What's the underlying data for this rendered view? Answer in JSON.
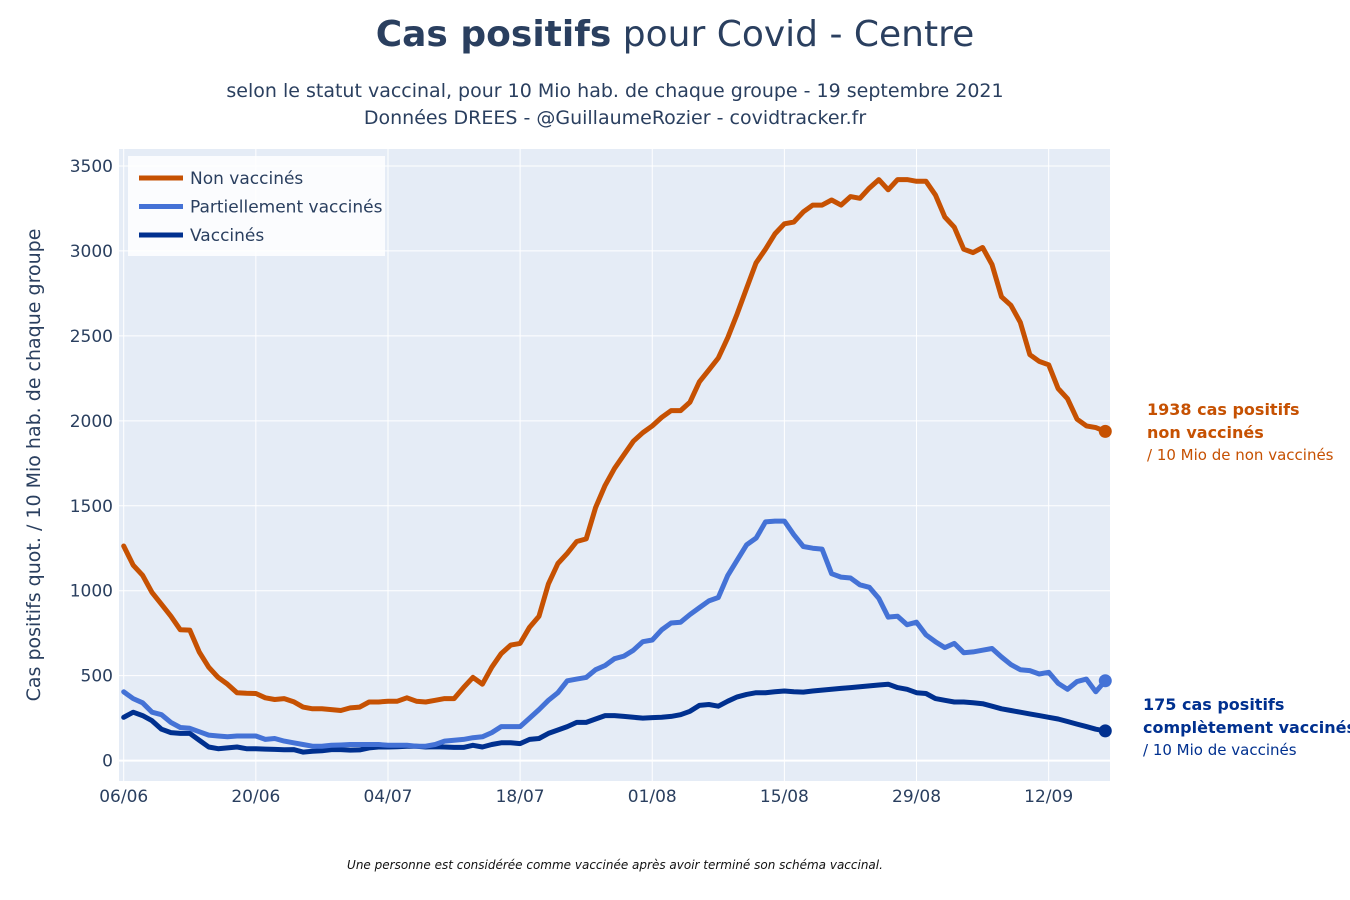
{
  "header": {
    "title_bold": "Cas positifs",
    "title_rest": " pour Covid - Centre",
    "subtitle_line1": "selon le statut vaccinal, pour 10 Mio hab. de chaque groupe - 19 septembre 2021",
    "subtitle_line2": "Données DREES - @GuillaumeRozier - covidtracker.fr"
  },
  "footnote": "Une personne est considérée comme vaccinée après avoir terminé son schéma vaccinal.",
  "annotations": {
    "non_vaccines": {
      "line1": "1938 cas positifs",
      "line2": "non vaccinés",
      "line3": "/ 10 Mio de non vaccinés"
    },
    "vaccines": {
      "line1": "175 cas positifs",
      "line2": "complètement vaccinés",
      "line3": "/ 10 Mio de vaccinés"
    }
  },
  "colors": {
    "plot_bg": "#e5ecf6",
    "grid": "#ffffff",
    "non_vaccines": "#c65102",
    "partiellement": "#4472d6",
    "vaccines": "#00308f",
    "text": "#2a3f5f"
  },
  "chart_data": {
    "type": "line",
    "ylabel": "Cas positifs quot. / 10 Mio hab. de chaque groupe",
    "xlabel": "",
    "ylim": [
      -120,
      3600
    ],
    "yticks": [
      0,
      500,
      1000,
      1500,
      2000,
      2500,
      3000,
      3500
    ],
    "x_start": "2021-06-06",
    "xlim_days": [
      -0.5,
      104.5
    ],
    "xticks": [
      {
        "day": 0,
        "label": "06/06"
      },
      {
        "day": 14,
        "label": "20/06"
      },
      {
        "day": 28,
        "label": "04/07"
      },
      {
        "day": 42,
        "label": "18/07"
      },
      {
        "day": 56,
        "label": "01/08"
      },
      {
        "day": 70,
        "label": "15/08"
      },
      {
        "day": 84,
        "label": "29/08"
      },
      {
        "day": 98,
        "label": "12/09"
      }
    ],
    "grid": true,
    "legend_position": "top-left",
    "series": [
      {
        "name": "Non vaccinés",
        "values": [
          1263,
          1150,
          1091,
          990,
          920,
          850,
          770,
          768,
          640,
          550,
          490,
          450,
          400,
          396,
          395,
          370,
          360,
          365,
          347,
          315,
          305,
          305,
          300,
          295,
          310,
          315,
          345,
          345,
          350,
          350,
          370,
          350,
          345,
          355,
          365,
          365,
          430,
          490,
          450,
          550,
          630,
          680,
          690,
          785,
          850,
          1040,
          1160,
          1220,
          1290,
          1305,
          1490,
          1620,
          1720,
          1800,
          1880,
          1930,
          1970,
          2020,
          2060,
          2060,
          2110,
          2230,
          2300,
          2370,
          2490,
          2630,
          2780,
          2930,
          3010,
          3100,
          3160,
          3170,
          3230,
          3270,
          3270,
          3300,
          3270,
          3320,
          3310,
          3370,
          3420,
          3360,
          3420,
          3420,
          3410,
          3410,
          3330,
          3200,
          3140,
          3010,
          2990,
          3020,
          2920,
          2730,
          2680,
          2580,
          2390,
          2350,
          2330,
          2190,
          2130,
          2010,
          1970,
          1960,
          1938
        ],
        "end_marker": true
      },
      {
        "name": "Partiellement vaccinés",
        "values": [
          405,
          365,
          340,
          285,
          270,
          225,
          195,
          190,
          170,
          150,
          145,
          140,
          145,
          145,
          145,
          125,
          130,
          115,
          105,
          95,
          85,
          85,
          90,
          92,
          95,
          95,
          95,
          95,
          90,
          90,
          90,
          85,
          85,
          95,
          115,
          120,
          125,
          135,
          140,
          165,
          200,
          200,
          200,
          250,
          300,
          355,
          400,
          470,
          480,
          490,
          535,
          560,
          600,
          615,
          650,
          700,
          710,
          770,
          810,
          815,
          860,
          900,
          940,
          960,
          1090,
          1180,
          1270,
          1310,
          1405,
          1410,
          1410,
          1330,
          1260,
          1250,
          1245,
          1100,
          1080,
          1075,
          1035,
          1020,
          955,
          845,
          850,
          800,
          815,
          740,
          700,
          665,
          690,
          635,
          640,
          650,
          660,
          610,
          565,
          535,
          530,
          510,
          520,
          455,
          420,
          465,
          480,
          405,
          470
        ],
        "end_marker": true
      },
      {
        "name": "Vaccinés",
        "values": [
          255,
          285,
          265,
          235,
          185,
          165,
          160,
          160,
          120,
          80,
          70,
          75,
          80,
          70,
          70,
          68,
          66,
          64,
          65,
          50,
          55,
          58,
          65,
          65,
          62,
          63,
          75,
          80,
          80,
          82,
          85,
          85,
          80,
          82,
          80,
          78,
          78,
          90,
          80,
          95,
          105,
          105,
          100,
          125,
          130,
          160,
          180,
          200,
          225,
          225,
          245,
          265,
          265,
          260,
          255,
          250,
          253,
          255,
          260,
          270,
          290,
          325,
          330,
          320,
          350,
          375,
          390,
          400,
          400,
          405,
          410,
          405,
          403,
          410,
          415,
          420,
          425,
          430,
          435,
          440,
          445,
          450,
          430,
          420,
          400,
          395,
          365,
          355,
          345,
          345,
          340,
          335,
          320,
          305,
          295,
          285,
          275,
          265,
          255,
          245,
          230,
          215,
          200,
          185,
          175
        ],
        "end_marker": true
      }
    ]
  }
}
